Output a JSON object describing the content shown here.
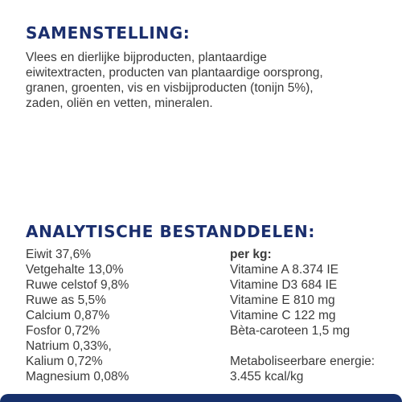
{
  "colors": {
    "heading": "#1b2f6e",
    "text": "#3a3a3a",
    "bar": "#16306b"
  },
  "composition": {
    "title": "SAMENSTELLING:",
    "lines": [
      "Vlees en dierlijke bijproducten, plantaardige",
      "eiwitextracten, producten van plantaardige oorsprong,",
      "granen, groenten, vis en visbijproducten (tonijn 5%),",
      "zaden, oliën en vetten, mineralen."
    ]
  },
  "analysis": {
    "title": "ANALYTISCHE BESTANDDELEN:",
    "nutrients": [
      "Eiwit 37,6%",
      "Vetgehalte 13,0%",
      "Ruwe celstof 9,8%",
      "Ruwe as 5,5%",
      "Calcium 0,87%",
      "Fosfor 0,72%",
      "Natrium 0,33%,",
      "Kalium 0,72%",
      "Magnesium 0,08%"
    ],
    "per_kg_label": "per kg:",
    "vitamins": [
      "Vitamine A 8.374 IE",
      "Vitamine D3 684 IE",
      "Vitamine E 810 mg",
      "Vitamine C 122 mg",
      "Bèta-caroteen 1,5 mg"
    ],
    "energy_label": "Metaboliseerbare energie:",
    "energy_value": "3.455 kcal/kg"
  }
}
